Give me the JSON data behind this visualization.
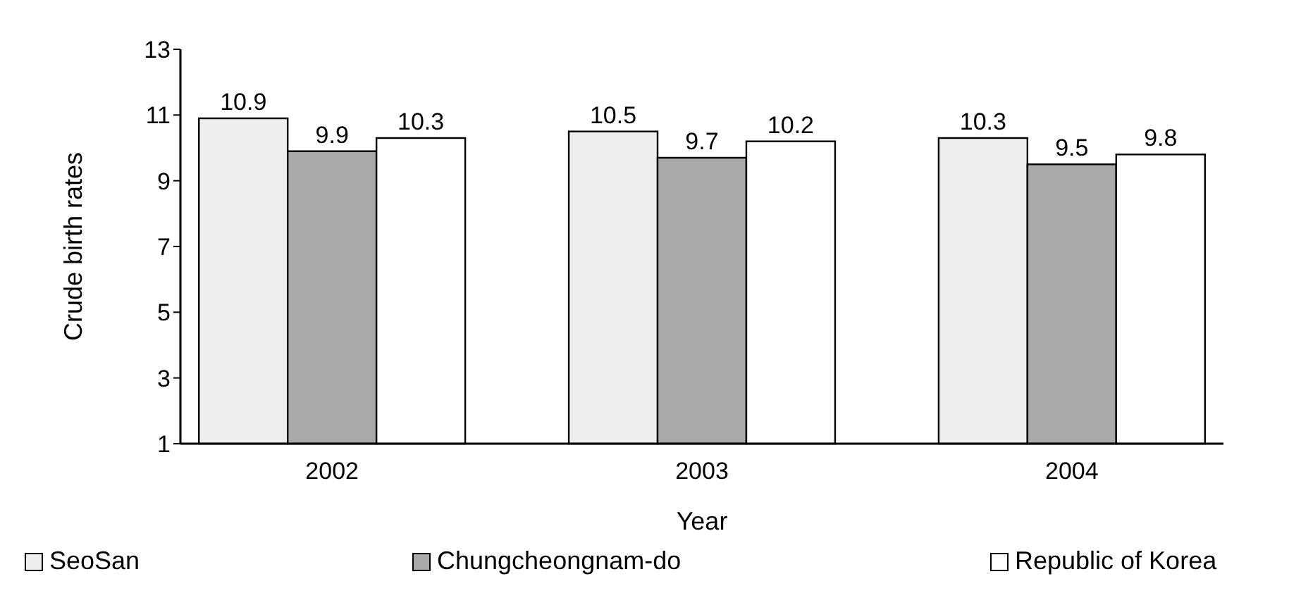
{
  "chart_data": {
    "type": "bar",
    "xlabel": "Year",
    "ylabel": "Crude birth rates",
    "categories": [
      "2002",
      "2003",
      "2004"
    ],
    "series": [
      {
        "name": "SeoSan",
        "color": "#eeeeee",
        "values": [
          10.9,
          10.5,
          10.3
        ]
      },
      {
        "name": "Chungcheongnam-do",
        "color": "#a9a9a9",
        "values": [
          9.9,
          9.7,
          9.5
        ]
      },
      {
        "name": "Republic of Korea",
        "color": "#ffffff",
        "values": [
          10.3,
          10.2,
          9.8
        ]
      }
    ],
    "ylim": [
      1,
      13
    ],
    "yticks": [
      1,
      3,
      5,
      7,
      9,
      11,
      13
    ],
    "data_labels": true,
    "legend": "bottom",
    "grid": false
  }
}
